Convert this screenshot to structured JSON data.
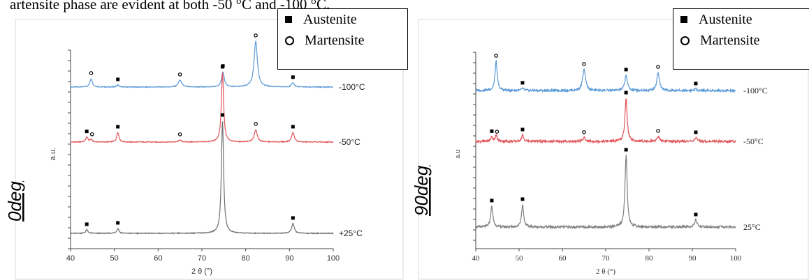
{
  "caption_fragment": "artensite phase are evident at both -50 °C and -100 °C.",
  "legend": {
    "austenite": "Austenite",
    "martensite": "Martensite"
  },
  "chart_data": [
    {
      "type": "line",
      "panel_label": "0deg",
      "xlabel": "2 θ (°)",
      "ylabel": "a.u.",
      "xlim": [
        40,
        100
      ],
      "x_ticks": [
        40,
        50,
        60,
        70,
        80,
        90,
        100
      ],
      "grid": false,
      "legend_position": "top-right",
      "series": [
        {
          "name": "-100°C",
          "color": "#5a9ad8",
          "peaks": [
            {
              "x": 44.7,
              "h": 0.12,
              "w": 0.35
            },
            {
              "x": 65.0,
              "h": 0.1,
              "w": 0.45
            },
            {
              "x": 74.8,
              "h": 0.22,
              "w": 0.35
            },
            {
              "x": 82.3,
              "h": 0.66,
              "w": 0.45
            },
            {
              "x": 90.8,
              "h": 0.06,
              "w": 0.35
            },
            {
              "x": 50.8,
              "h": 0.03,
              "w": 0.3
            }
          ]
        },
        {
          "name": "-50°C",
          "color": "#e0565a",
          "peaks": [
            {
              "x": 43.7,
              "h": 0.07,
              "w": 0.3
            },
            {
              "x": 44.7,
              "h": 0.04,
              "w": 0.3
            },
            {
              "x": 50.8,
              "h": 0.14,
              "w": 0.3
            },
            {
              "x": 65.0,
              "h": 0.03,
              "w": 0.35
            },
            {
              "x": 74.7,
              "h": 1.0,
              "w": 0.3
            },
            {
              "x": 82.3,
              "h": 0.18,
              "w": 0.4
            },
            {
              "x": 90.8,
              "h": 0.14,
              "w": 0.35
            }
          ]
        },
        {
          "name": "+25°C",
          "color": "#707070",
          "peaks": [
            {
              "x": 43.7,
              "h": 0.05,
              "w": 0.3
            },
            {
              "x": 50.8,
              "h": 0.07,
              "w": 0.3
            },
            {
              "x": 74.7,
              "h": 1.62,
              "w": 0.3
            },
            {
              "x": 90.8,
              "h": 0.14,
              "w": 0.35
            }
          ]
        }
      ],
      "markers": [
        {
          "series": 0,
          "x": 44.7,
          "kind": "martensite"
        },
        {
          "series": 0,
          "x": 50.8,
          "kind": "austenite"
        },
        {
          "series": 0,
          "x": 65.0,
          "kind": "martensite"
        },
        {
          "series": 0,
          "x": 74.8,
          "kind": "austenite"
        },
        {
          "series": 0,
          "x": 82.3,
          "kind": "martensite"
        },
        {
          "series": 0,
          "x": 90.8,
          "kind": "austenite"
        },
        {
          "series": 1,
          "x": 43.7,
          "kind": "austenite"
        },
        {
          "series": 1,
          "x": 44.9,
          "kind": "martensite"
        },
        {
          "series": 1,
          "x": 50.8,
          "kind": "austenite"
        },
        {
          "series": 1,
          "x": 65.0,
          "kind": "martensite"
        },
        {
          "series": 1,
          "x": 74.7,
          "kind": "austenite"
        },
        {
          "series": 1,
          "x": 82.3,
          "kind": "martensite"
        },
        {
          "series": 1,
          "x": 90.8,
          "kind": "austenite"
        },
        {
          "series": 2,
          "x": 43.7,
          "kind": "austenite"
        },
        {
          "series": 2,
          "x": 50.8,
          "kind": "austenite"
        },
        {
          "series": 2,
          "x": 74.7,
          "kind": "austenite"
        },
        {
          "series": 2,
          "x": 90.8,
          "kind": "austenite"
        }
      ]
    },
    {
      "type": "line",
      "panel_label": "90deg",
      "xlabel": "2 θ (°)",
      "ylabel": "a.u",
      "xlim": [
        40,
        100
      ],
      "x_ticks": [
        40,
        50,
        60,
        70,
        80,
        90,
        100
      ],
      "grid": false,
      "legend_position": "top-right",
      "series": [
        {
          "name": "-100°C",
          "color": "#5a9ad8",
          "peaks": [
            {
              "x": 44.7,
              "h": 0.42,
              "w": 0.3
            },
            {
              "x": 50.8,
              "h": 0.03,
              "w": 0.3
            },
            {
              "x": 65.0,
              "h": 0.3,
              "w": 0.4
            },
            {
              "x": 74.7,
              "h": 0.22,
              "w": 0.35
            },
            {
              "x": 82.1,
              "h": 0.26,
              "w": 0.35
            },
            {
              "x": 90.8,
              "h": 0.02,
              "w": 0.35
            }
          ]
        },
        {
          "name": "-50°C",
          "color": "#e0565a",
          "peaks": [
            {
              "x": 43.7,
              "h": 0.06,
              "w": 0.3
            },
            {
              "x": 44.7,
              "h": 0.08,
              "w": 0.3
            },
            {
              "x": 50.8,
              "h": 0.09,
              "w": 0.3
            },
            {
              "x": 65.0,
              "h": 0.05,
              "w": 0.35
            },
            {
              "x": 74.7,
              "h": 0.62,
              "w": 0.3
            },
            {
              "x": 82.1,
              "h": 0.07,
              "w": 0.35
            },
            {
              "x": 90.8,
              "h": 0.05,
              "w": 0.35
            }
          ]
        },
        {
          "name": "25°C",
          "color": "#808080",
          "peaks": [
            {
              "x": 43.7,
              "h": 0.3,
              "w": 0.3
            },
            {
              "x": 50.8,
              "h": 0.32,
              "w": 0.3
            },
            {
              "x": 74.7,
              "h": 1.03,
              "w": 0.3
            },
            {
              "x": 90.8,
              "h": 0.1,
              "w": 0.35
            }
          ]
        }
      ],
      "markers": [
        {
          "series": 0,
          "x": 44.7,
          "kind": "martensite"
        },
        {
          "series": 0,
          "x": 50.8,
          "kind": "austenite"
        },
        {
          "series": 0,
          "x": 65.0,
          "kind": "martensite"
        },
        {
          "series": 0,
          "x": 74.7,
          "kind": "austenite"
        },
        {
          "series": 0,
          "x": 82.1,
          "kind": "martensite"
        },
        {
          "series": 0,
          "x": 90.8,
          "kind": "austenite"
        },
        {
          "series": 1,
          "x": 43.7,
          "kind": "austenite"
        },
        {
          "series": 1,
          "x": 44.9,
          "kind": "martensite"
        },
        {
          "series": 1,
          "x": 50.8,
          "kind": "austenite"
        },
        {
          "series": 1,
          "x": 65.0,
          "kind": "martensite"
        },
        {
          "series": 1,
          "x": 74.7,
          "kind": "austenite"
        },
        {
          "series": 1,
          "x": 82.1,
          "kind": "martensite"
        },
        {
          "series": 1,
          "x": 90.8,
          "kind": "austenite"
        },
        {
          "series": 2,
          "x": 43.7,
          "kind": "austenite"
        },
        {
          "series": 2,
          "x": 50.8,
          "kind": "austenite"
        },
        {
          "series": 2,
          "x": 74.7,
          "kind": "austenite"
        },
        {
          "series": 2,
          "x": 90.8,
          "kind": "austenite"
        }
      ]
    }
  ]
}
